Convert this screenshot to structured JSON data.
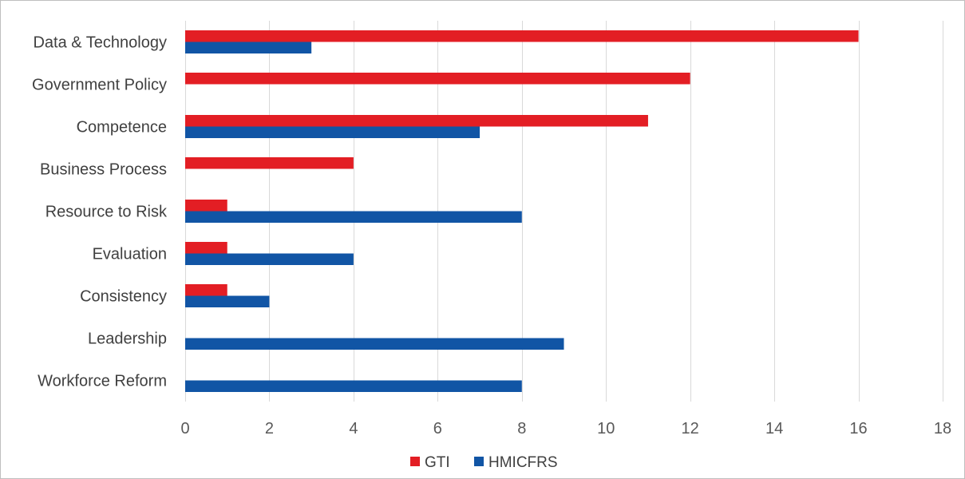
{
  "chart_data": {
    "type": "bar",
    "orientation": "horizontal",
    "categories": [
      "Data & Technology",
      "Government Policy",
      "Competence",
      "Business Process",
      "Resource to Risk",
      "Evaluation",
      "Consistency",
      "Leadership",
      "Workforce Reform"
    ],
    "series": [
      {
        "name": "GTI",
        "color": "#e31e24",
        "values": [
          16,
          12,
          11,
          4,
          1,
          1,
          1,
          0,
          0
        ]
      },
      {
        "name": "HMICFRS",
        "color": "#1155a5",
        "values": [
          3,
          0,
          7,
          0,
          8,
          4,
          2,
          9,
          8
        ]
      }
    ],
    "xlim": [
      0,
      18
    ],
    "xticks": [
      "0",
      "2",
      "4",
      "6",
      "8",
      "10",
      "12",
      "14",
      "16",
      "18"
    ],
    "grid": true,
    "legend": "bottom"
  }
}
